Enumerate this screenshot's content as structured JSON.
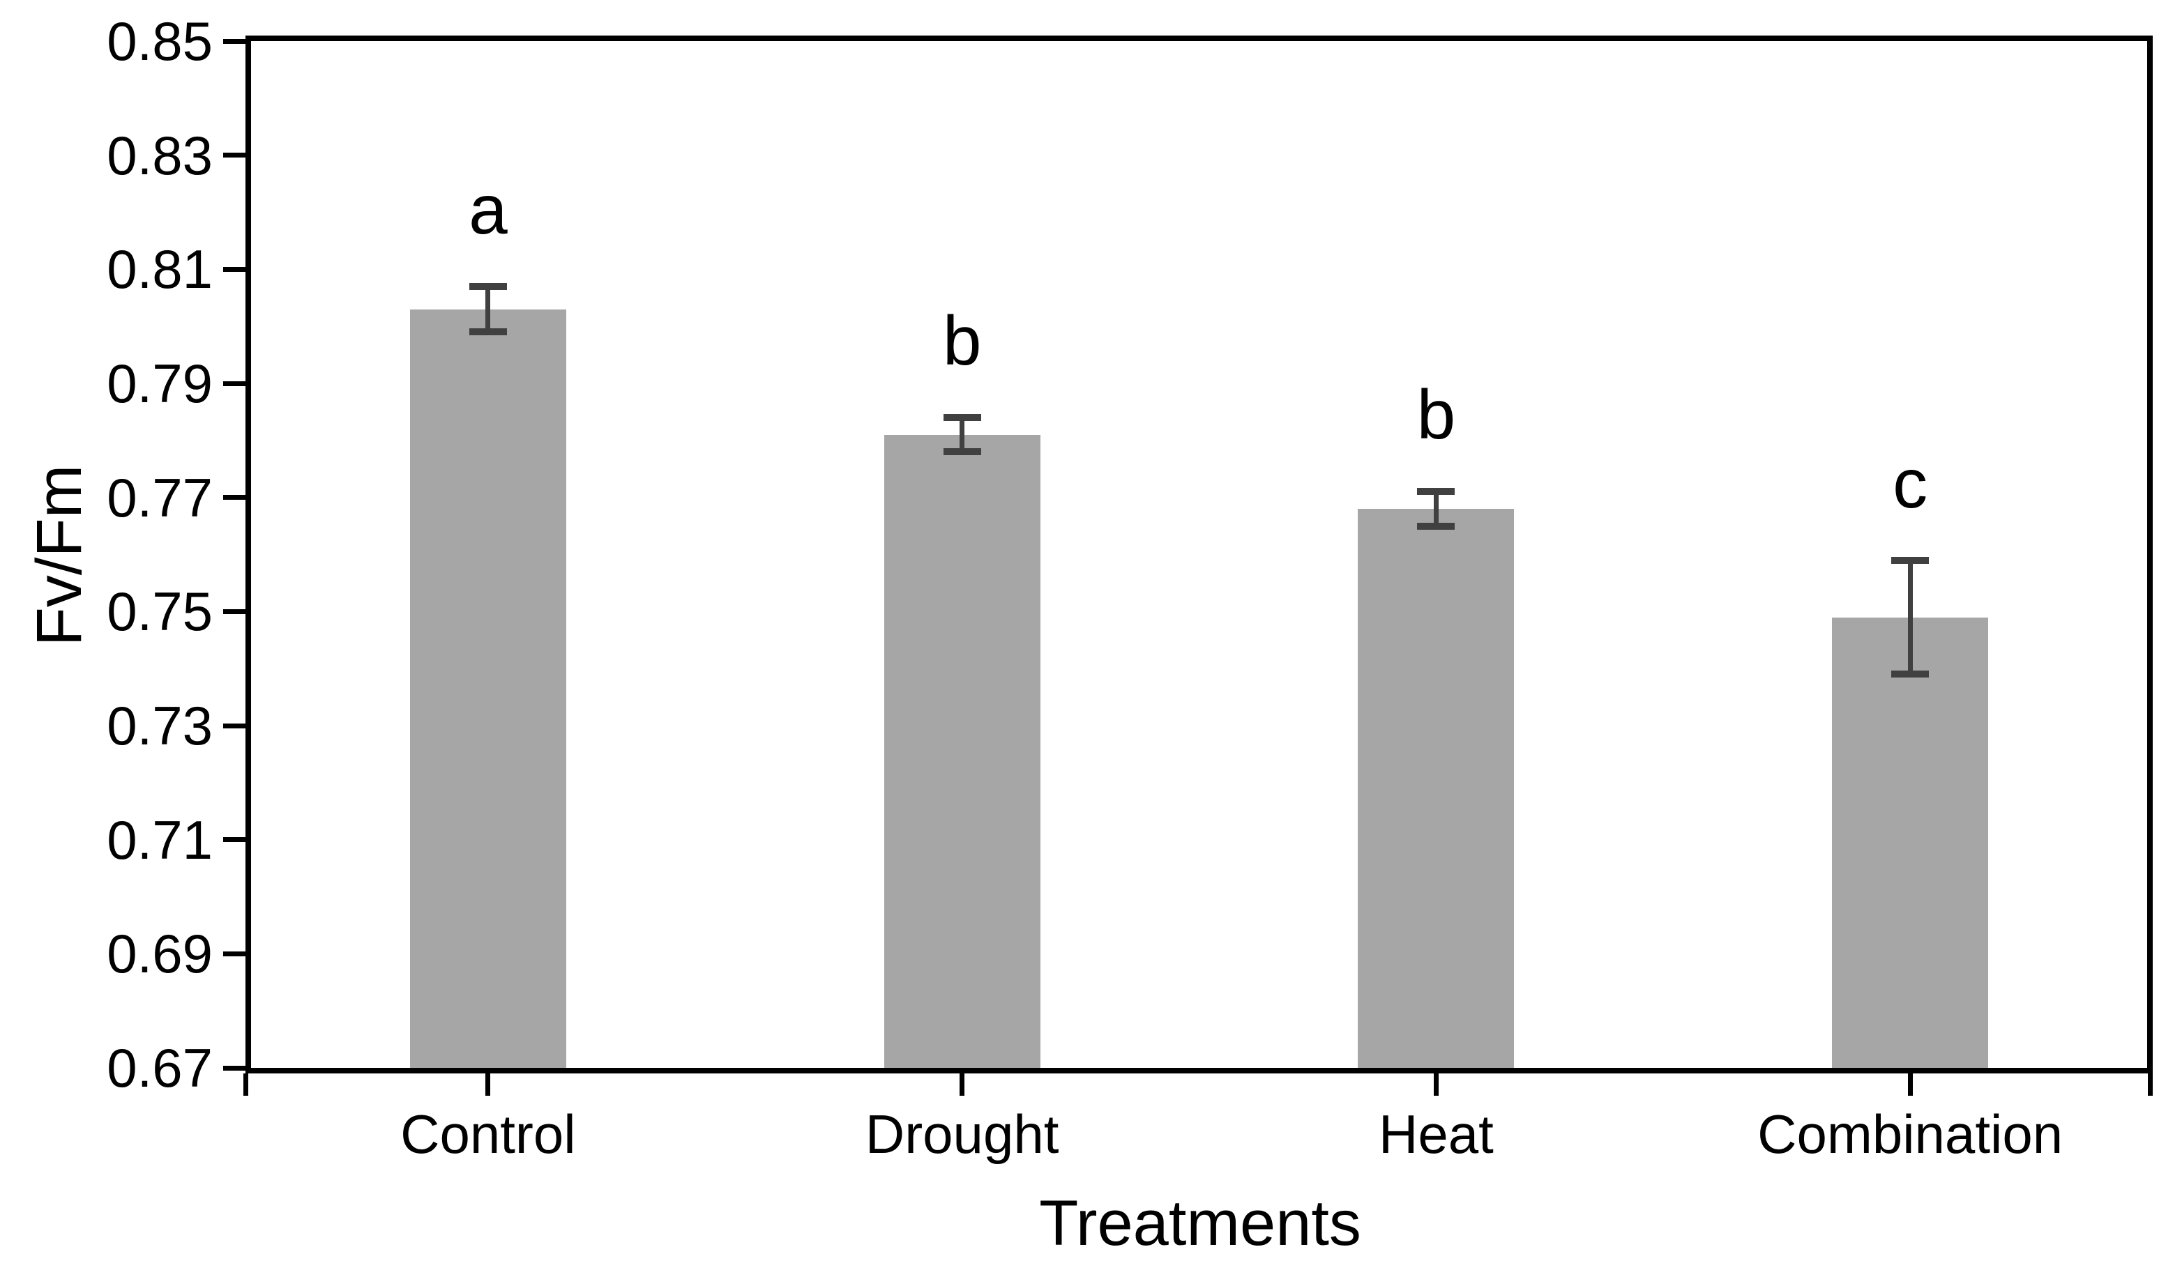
{
  "chart_data": {
    "type": "bar",
    "title": "",
    "xlabel": "Treatments",
    "ylabel": "Fv/Fm",
    "categories": [
      "Control",
      "Drought",
      "Heat",
      "Combination"
    ],
    "values": [
      0.803,
      0.781,
      0.768,
      0.749
    ],
    "errors": [
      0.004,
      0.003,
      0.003,
      0.01
    ],
    "sig_letters": [
      "a",
      "b",
      "b",
      "c"
    ],
    "ylim": [
      0.67,
      0.85
    ],
    "y_tick_step": 0.02,
    "y_ticks": [
      "0.85",
      "0.83",
      "0.81",
      "0.79",
      "0.77",
      "0.75",
      "0.73",
      "0.71",
      "0.69",
      "0.67"
    ],
    "grid": false,
    "legend": "none",
    "colors": {
      "bar_fill": "#a6a6a6",
      "error_bar": "#404040",
      "axis": "#000000",
      "text": "#000000"
    }
  }
}
